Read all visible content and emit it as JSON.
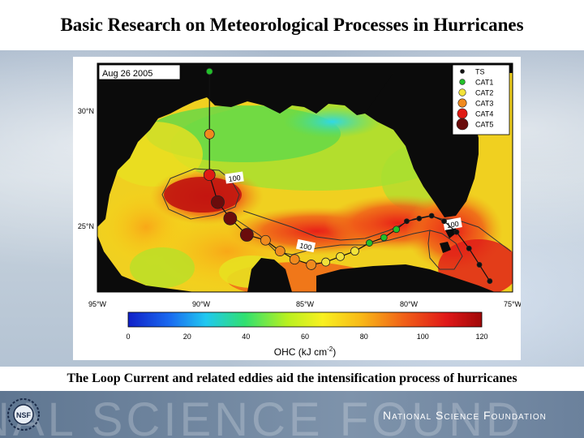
{
  "slide": {
    "title": "Basic Research on Meteorological Processes in Hurricanes",
    "caption": "The Loop Current and related eddies aid the intensification process of hurricanes",
    "footer_watermark": "NAL SCIENCE FOUND",
    "footer_org": "National Science Foundation",
    "logo_text": "NSF"
  },
  "map": {
    "date_label": "Aug 26 2005",
    "lat_labels": [
      "30°N",
      "25°N"
    ],
    "lon_labels": [
      "95°W",
      "90°W",
      "85°W",
      "80°W",
      "75°W"
    ],
    "contour_labels": [
      "100",
      "100",
      "100"
    ],
    "colorbar_ticks": [
      "0",
      "20",
      "40",
      "60",
      "80",
      "100",
      "120"
    ],
    "colorbar_label": "OHC (kJ cm",
    "colorbar_label_sup": "-2",
    "colorbar_label_end": ")",
    "legend": [
      {
        "label": "TS",
        "color": "#111111"
      },
      {
        "label": "CAT1",
        "color": "#22c02a"
      },
      {
        "label": "CAT2",
        "color": "#f2e23a"
      },
      {
        "label": "CAT3",
        "color": "#f08a1e"
      },
      {
        "label": "CAT4",
        "color": "#e01a14"
      },
      {
        "label": "CAT5",
        "color": "#6a0c0c"
      }
    ]
  },
  "track": {
    "points": [
      {
        "lon": -89.6,
        "lat": 31.6,
        "cat": "CAT1"
      },
      {
        "lon": -89.6,
        "lat": 29.3,
        "cat": "CAT3"
      },
      {
        "lon": -89.6,
        "lat": 27.8,
        "cat": "CAT4"
      },
      {
        "lon": -89.2,
        "lat": 26.8,
        "cat": "CAT5"
      },
      {
        "lon": -88.6,
        "lat": 26.2,
        "cat": "CAT5"
      },
      {
        "lon": -87.8,
        "lat": 25.6,
        "cat": "CAT5"
      },
      {
        "lon": -86.9,
        "lat": 25.4,
        "cat": "CAT3"
      },
      {
        "lon": -86.2,
        "lat": 25.0,
        "cat": "CAT3"
      },
      {
        "lon": -85.5,
        "lat": 24.7,
        "cat": "CAT3"
      },
      {
        "lon": -84.7,
        "lat": 24.5,
        "cat": "CAT3"
      },
      {
        "lon": -84.0,
        "lat": 24.6,
        "cat": "CAT2"
      },
      {
        "lon": -83.3,
        "lat": 24.8,
        "cat": "CAT2"
      },
      {
        "lon": -82.6,
        "lat": 25.0,
        "cat": "CAT2"
      },
      {
        "lon": -81.9,
        "lat": 25.3,
        "cat": "CAT1"
      },
      {
        "lon": -81.2,
        "lat": 25.5,
        "cat": "CAT1"
      },
      {
        "lon": -80.6,
        "lat": 25.8,
        "cat": "CAT1"
      },
      {
        "lon": -80.1,
        "lat": 26.1,
        "cat": "TS"
      },
      {
        "lon": -79.5,
        "lat": 26.2,
        "cat": "TS"
      },
      {
        "lon": -78.9,
        "lat": 26.3,
        "cat": "TS"
      },
      {
        "lon": -78.3,
        "lat": 26.1,
        "cat": "TS"
      },
      {
        "lon": -77.7,
        "lat": 25.7,
        "cat": "TS"
      },
      {
        "lon": -77.1,
        "lat": 25.1,
        "cat": "TS"
      },
      {
        "lon": -76.6,
        "lat": 24.5,
        "cat": "TS"
      },
      {
        "lon": -76.1,
        "lat": 23.9,
        "cat": "TS"
      }
    ]
  },
  "colors": {
    "land": "#0b0b0b",
    "panel_bg": "#ffffff"
  }
}
